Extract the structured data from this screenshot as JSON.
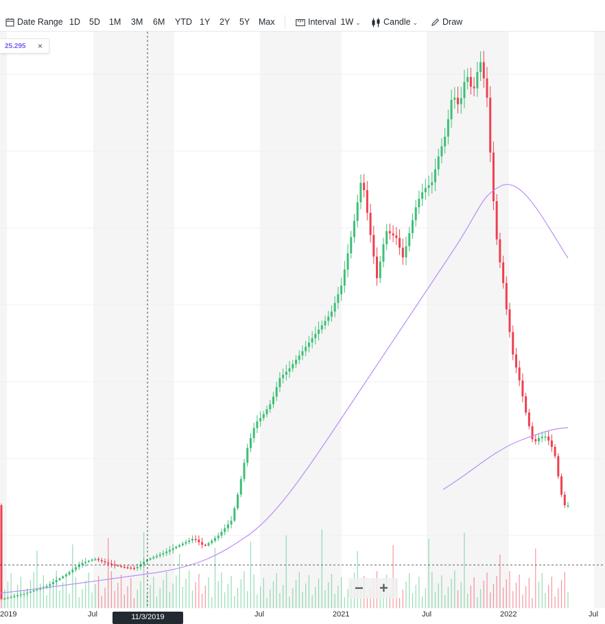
{
  "toolbar": {
    "date_range_label": "Date Range",
    "ranges": [
      "1D",
      "5D",
      "1M",
      "3M",
      "6M",
      "YTD",
      "1Y",
      "2Y",
      "5Y",
      "Max"
    ],
    "interval_label": "Interval",
    "interval_value": "1W",
    "chart_type_label": "Candle",
    "draw_label": "Draw"
  },
  "price_tag": {
    "value": "25.295",
    "close": "×"
  },
  "zoom": {
    "minus": "−",
    "plus": "+"
  },
  "crosshair": {
    "date_label": "11/3/2019"
  },
  "x_axis": {
    "labels": [
      {
        "text": "2019"
      },
      {
        "text": "Jul"
      },
      {
        "text": "Jul"
      },
      {
        "text": "2021"
      },
      {
        "text": "Jul"
      },
      {
        "text": "2022"
      },
      {
        "text": "Jul"
      }
    ]
  },
  "colors": {
    "up": "#3dbf76",
    "down": "#ef3f4f",
    "ma": "#b98df6",
    "accent": "#7e5cf2",
    "band": "#f5f5f5"
  },
  "chart_data": {
    "type": "candlestick",
    "interval": "1W",
    "x_range": [
      "2019-01",
      "2022-07"
    ],
    "moving_average_visible": true,
    "volume_visible": true
  }
}
